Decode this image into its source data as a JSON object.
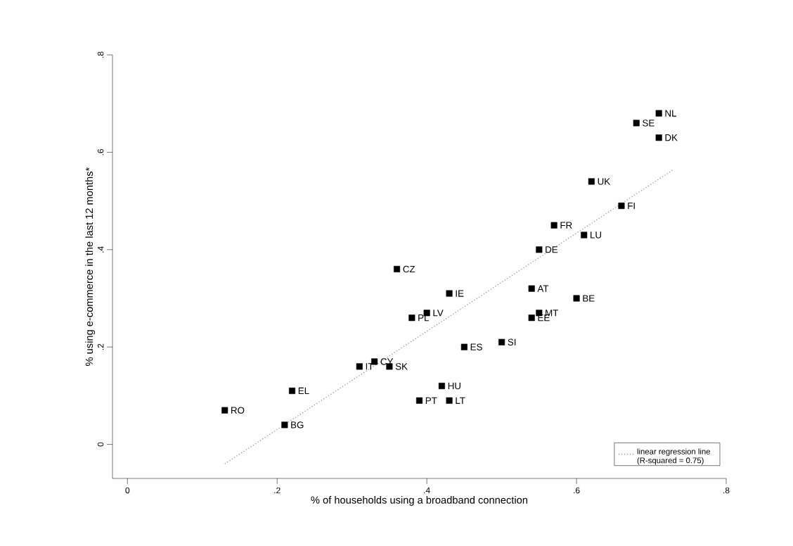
{
  "chart_data": {
    "type": "scatter",
    "xlabel": "% of households using a broadband connection",
    "ylabel": "% using e-commerce in the last 12 months*",
    "xlim": [
      -0.02,
      0.8
    ],
    "ylim": [
      -0.07,
      0.8
    ],
    "xticks": [
      0,
      {
        "value": 0.2,
        "label": ".2"
      },
      {
        "value": 0.4,
        "label": ".4"
      },
      {
        "value": 0.6,
        "label": ".6"
      },
      {
        "value": 0.8,
        "label": ".8"
      }
    ],
    "yticks": [
      0,
      {
        "value": 0.2,
        "label": ".2"
      },
      {
        "value": 0.4,
        "label": ".4"
      },
      {
        "value": 0.6,
        "label": ".6"
      },
      {
        "value": 0.8,
        "label": ".8"
      }
    ],
    "legend": "bottom right",
    "series": [
      {
        "color": "#000000",
        "marker": "square",
        "x": [
          0.71,
          0.68,
          0.71,
          0.62,
          0.66,
          0.57,
          0.61,
          0.55,
          0.36,
          0.43,
          0.54,
          0.6,
          0.4,
          0.38,
          0.55,
          0.54,
          0.45,
          0.5,
          0.33,
          0.31,
          0.35,
          0.42,
          0.39,
          0.43,
          0.22,
          0.13,
          0.21
        ],
        "values": [
          0.68,
          0.66,
          0.63,
          0.54,
          0.49,
          0.45,
          0.43,
          0.4,
          0.36,
          0.31,
          0.32,
          0.3,
          0.27,
          0.26,
          0.27,
          0.26,
          0.2,
          0.21,
          0.17,
          0.16,
          0.16,
          0.12,
          0.09,
          0.09,
          0.11,
          0.07,
          0.04
        ]
      },
      {
        "type": "line",
        "name": "linear regression line (R-squared = 0.75)",
        "color": "#999999",
        "line_style": "dotted",
        "marker": "none",
        "x": [
          0.13,
          0.73
        ],
        "values": [
          -0.04,
          0.565
        ]
      }
    ],
    "annotations": [
      {
        "text": "NL",
        "x": 0.71,
        "y": 0.68
      },
      {
        "text": "SE",
        "x": 0.68,
        "y": 0.66
      },
      {
        "text": "DK",
        "x": 0.71,
        "y": 0.63
      },
      {
        "text": "UK",
        "x": 0.62,
        "y": 0.54
      },
      {
        "text": "FI",
        "x": 0.66,
        "y": 0.49
      },
      {
        "text": "FR",
        "x": 0.57,
        "y": 0.45
      },
      {
        "text": "LU",
        "x": 0.61,
        "y": 0.43
      },
      {
        "text": "DE",
        "x": 0.55,
        "y": 0.4
      },
      {
        "text": "CZ",
        "x": 0.36,
        "y": 0.36
      },
      {
        "text": "IE",
        "x": 0.43,
        "y": 0.31
      },
      {
        "text": "AT",
        "x": 0.54,
        "y": 0.32
      },
      {
        "text": "BE",
        "x": 0.6,
        "y": 0.3
      },
      {
        "text": "LV",
        "x": 0.4,
        "y": 0.27
      },
      {
        "text": "PL",
        "x": 0.38,
        "y": 0.26
      },
      {
        "text": "MT",
        "x": 0.55,
        "y": 0.27
      },
      {
        "text": "EE",
        "x": 0.54,
        "y": 0.26
      },
      {
        "text": "ES",
        "x": 0.45,
        "y": 0.2
      },
      {
        "text": "SI",
        "x": 0.5,
        "y": 0.21
      },
      {
        "text": "CY",
        "x": 0.33,
        "y": 0.17
      },
      {
        "text": "IT",
        "x": 0.31,
        "y": 0.16
      },
      {
        "text": "SK",
        "x": 0.35,
        "y": 0.16
      },
      {
        "text": "HU",
        "x": 0.42,
        "y": 0.12
      },
      {
        "text": "PT",
        "x": 0.39,
        "y": 0.09
      },
      {
        "text": "LT",
        "x": 0.43,
        "y": 0.09
      },
      {
        "text": "EL",
        "x": 0.22,
        "y": 0.11
      },
      {
        "text": "RO",
        "x": 0.13,
        "y": 0.07
      },
      {
        "text": "BG",
        "x": 0.21,
        "y": 0.04
      }
    ]
  }
}
